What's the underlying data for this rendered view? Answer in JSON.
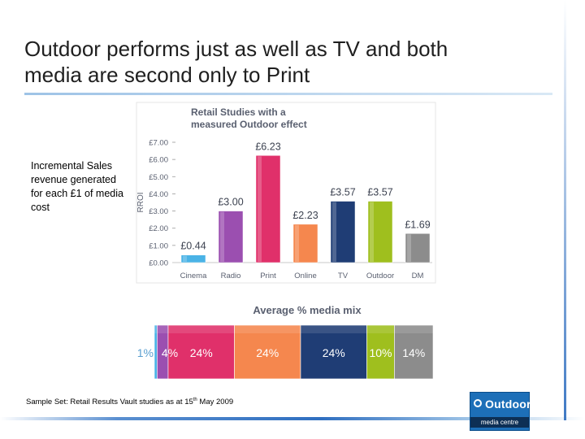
{
  "slide": {
    "title_line1": "Outdoor performs just as well as TV and both",
    "title_line2": "media are second only to Print",
    "side_note": "Incremental Sales revenue generated for each £1 of media cost",
    "sample_note_a": "Sample Set: Retail Results Vault studies as at 15",
    "sample_note_sup": "th",
    "sample_note_b": " May 2009",
    "logo_word": "Outdoor",
    "logo_sub": "media centre"
  },
  "colors": {
    "Cinema": "#4ab3e6",
    "Radio": "#9b4fb0",
    "Print": "#e0306a",
    "Online": "#f5874e",
    "TV": "#1f3d75",
    "Outdoor": "#9fbf1e",
    "DM": "#8c8c8c"
  },
  "chart_data": [
    {
      "type": "bar",
      "title": "Retail Studies with a measured Outdoor effect",
      "ylabel": "RROI",
      "categories": [
        "Cinema",
        "Radio",
        "Print",
        "Online",
        "TV",
        "Outdoor",
        "DM"
      ],
      "values": [
        0.44,
        3.0,
        6.23,
        2.23,
        3.57,
        3.57,
        1.69
      ],
      "value_labels": [
        "£0.44",
        "£3.00",
        "£6.23",
        "£2.23",
        "£3.57",
        "£3.57",
        "£1.69"
      ],
      "yticks": [
        "£0.00",
        "£1.00",
        "£2.00",
        "£3.00",
        "£4.00",
        "£5.00",
        "£6.00",
        "£7.00"
      ],
      "ylim": [
        0,
        7
      ],
      "grid": false
    },
    {
      "type": "bar",
      "title": "Average % media mix",
      "orientation": "horizontal-stacked",
      "categories": [
        "Cinema",
        "Radio",
        "Print",
        "Online",
        "TV",
        "Outdoor",
        "DM"
      ],
      "values": [
        1,
        4,
        24,
        24,
        24,
        10,
        14
      ],
      "value_labels": [
        "1%",
        "4%",
        "24%",
        "24%",
        "24%",
        "10%",
        "14%"
      ]
    }
  ]
}
